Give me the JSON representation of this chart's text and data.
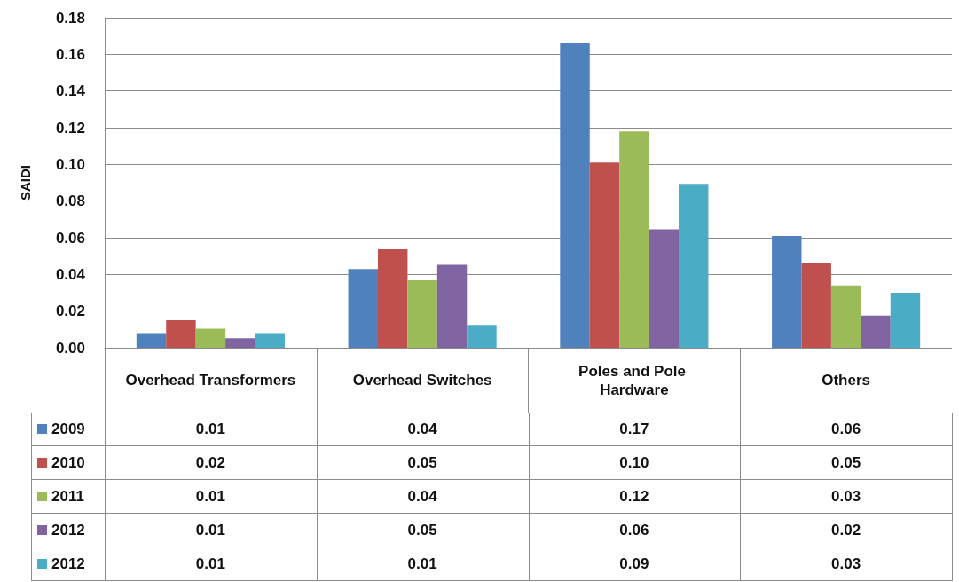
{
  "chart_data": {
    "type": "bar",
    "ylabel": "SAIDI",
    "categories": [
      "Overhead Transformers",
      "Overhead Switches",
      "Poles and Pole Hardware",
      "Others"
    ],
    "series": [
      {
        "name": "2009",
        "color": "#4f81bd",
        "values": [
          0.008,
          0.043,
          0.166,
          0.061
        ],
        "value_labels": [
          "0.01",
          "0.04",
          "0.17",
          "0.06"
        ]
      },
      {
        "name": "2010",
        "color": "#c0504d",
        "values": [
          0.015,
          0.0537,
          0.101,
          0.046
        ],
        "value_labels": [
          "0.02",
          "0.05",
          "0.10",
          "0.05"
        ]
      },
      {
        "name": "2011",
        "color": "#9bbb59",
        "values": [
          0.0104,
          0.0368,
          0.118,
          0.034
        ],
        "value_labels": [
          "0.01",
          "0.04",
          "0.12",
          "0.03"
        ]
      },
      {
        "name": "2012",
        "color": "#8064a2",
        "values": [
          0.0052,
          0.0452,
          0.0646,
          0.0175
        ],
        "value_labels": [
          "0.01",
          "0.05",
          "0.06",
          "0.02"
        ]
      },
      {
        "name": "2012",
        "color": "#4bacc6",
        "values": [
          0.008,
          0.0124,
          0.0894,
          0.03
        ],
        "value_labels": [
          "0.01",
          "0.01",
          "0.09",
          "0.03"
        ]
      }
    ],
    "ylim": [
      0,
      0.18
    ],
    "yticks": [
      {
        "value": 0,
        "label": "0.00"
      },
      {
        "value": 0.02,
        "label": "0.02"
      },
      {
        "value": 0.04,
        "label": "0.04"
      },
      {
        "value": 0.06,
        "label": "0.06"
      },
      {
        "value": 0.08,
        "label": "0.08"
      },
      {
        "value": 0.1,
        "label": "0.10"
      },
      {
        "value": 0.12,
        "label": "0.12"
      },
      {
        "value": 0.14,
        "label": "0.14"
      },
      {
        "value": 0.16,
        "label": "0.16"
      },
      {
        "value": 0.18,
        "label": "0.18"
      }
    ],
    "grid": "y",
    "legend": "bottom left"
  }
}
